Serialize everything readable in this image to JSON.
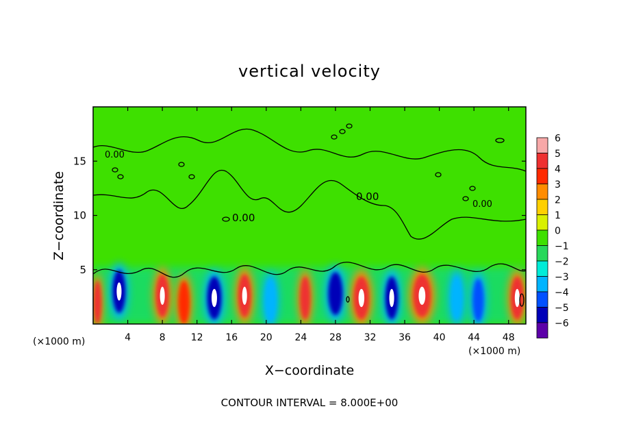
{
  "chart_data": {
    "type": "heatmap",
    "title": "vertical velocity",
    "xlabel": "X−coordinate",
    "ylabel": "Z−coordinate",
    "x_unit_label": "(×1000 m)",
    "z_unit_label": "(×1000 m)",
    "footer": "CONTOUR INTERVAL = 8.000E+00",
    "xlim": [
      0,
      50
    ],
    "ylim": [
      0,
      20
    ],
    "x_ticks": [
      4,
      8,
      12,
      16,
      20,
      24,
      28,
      32,
      36,
      40,
      44,
      48
    ],
    "y_ticks": [
      5,
      10,
      15
    ],
    "contour_labels": [
      "0.00",
      "0.00",
      "0.00",
      "0.00"
    ],
    "colorbar": {
      "min": -6,
      "max": 6,
      "tick_labels": [
        "6",
        "5",
        "4",
        "3",
        "2",
        "1",
        "0",
        "−1",
        "−2",
        "−3",
        "−4",
        "−5",
        "−6"
      ],
      "colors": [
        "#f7a8a8",
        "#ee3030",
        "#ff2a00",
        "#ff8c00",
        "#ffd000",
        "#d9f000",
        "#3ee000",
        "#28d85a",
        "#00ecd8",
        "#00b4ff",
        "#0050ff",
        "#0000b8",
        "#5c00a8"
      ]
    },
    "cells": [
      {
        "x": 0.5,
        "z": 2.0,
        "w": 1.0,
        "value": 5
      },
      {
        "x": 3.0,
        "z": 3.0,
        "w": 1.6,
        "value": -6
      },
      {
        "x": 8.0,
        "z": 2.6,
        "w": 1.6,
        "value": 6
      },
      {
        "x": 10.5,
        "z": 2.0,
        "w": 1.4,
        "value": 4
      },
      {
        "x": 14.0,
        "z": 2.4,
        "w": 1.8,
        "value": -6
      },
      {
        "x": 17.5,
        "z": 2.6,
        "w": 1.6,
        "value": 6
      },
      {
        "x": 20.5,
        "z": 2.2,
        "w": 1.4,
        "value": -3
      },
      {
        "x": 24.5,
        "z": 2.4,
        "w": 1.3,
        "value": 5
      },
      {
        "x": 28.0,
        "z": 2.8,
        "w": 1.8,
        "value": -5
      },
      {
        "x": 31.0,
        "z": 2.4,
        "w": 1.9,
        "value": 6
      },
      {
        "x": 34.5,
        "z": 2.4,
        "w": 1.6,
        "value": -6
      },
      {
        "x": 38.0,
        "z": 2.6,
        "w": 2.2,
        "value": 6
      },
      {
        "x": 42.0,
        "z": 2.4,
        "w": 1.4,
        "value": -3
      },
      {
        "x": 44.5,
        "z": 2.2,
        "w": 1.4,
        "value": -4
      },
      {
        "x": 49.0,
        "z": 2.4,
        "w": 1.6,
        "value": 6
      }
    ]
  }
}
